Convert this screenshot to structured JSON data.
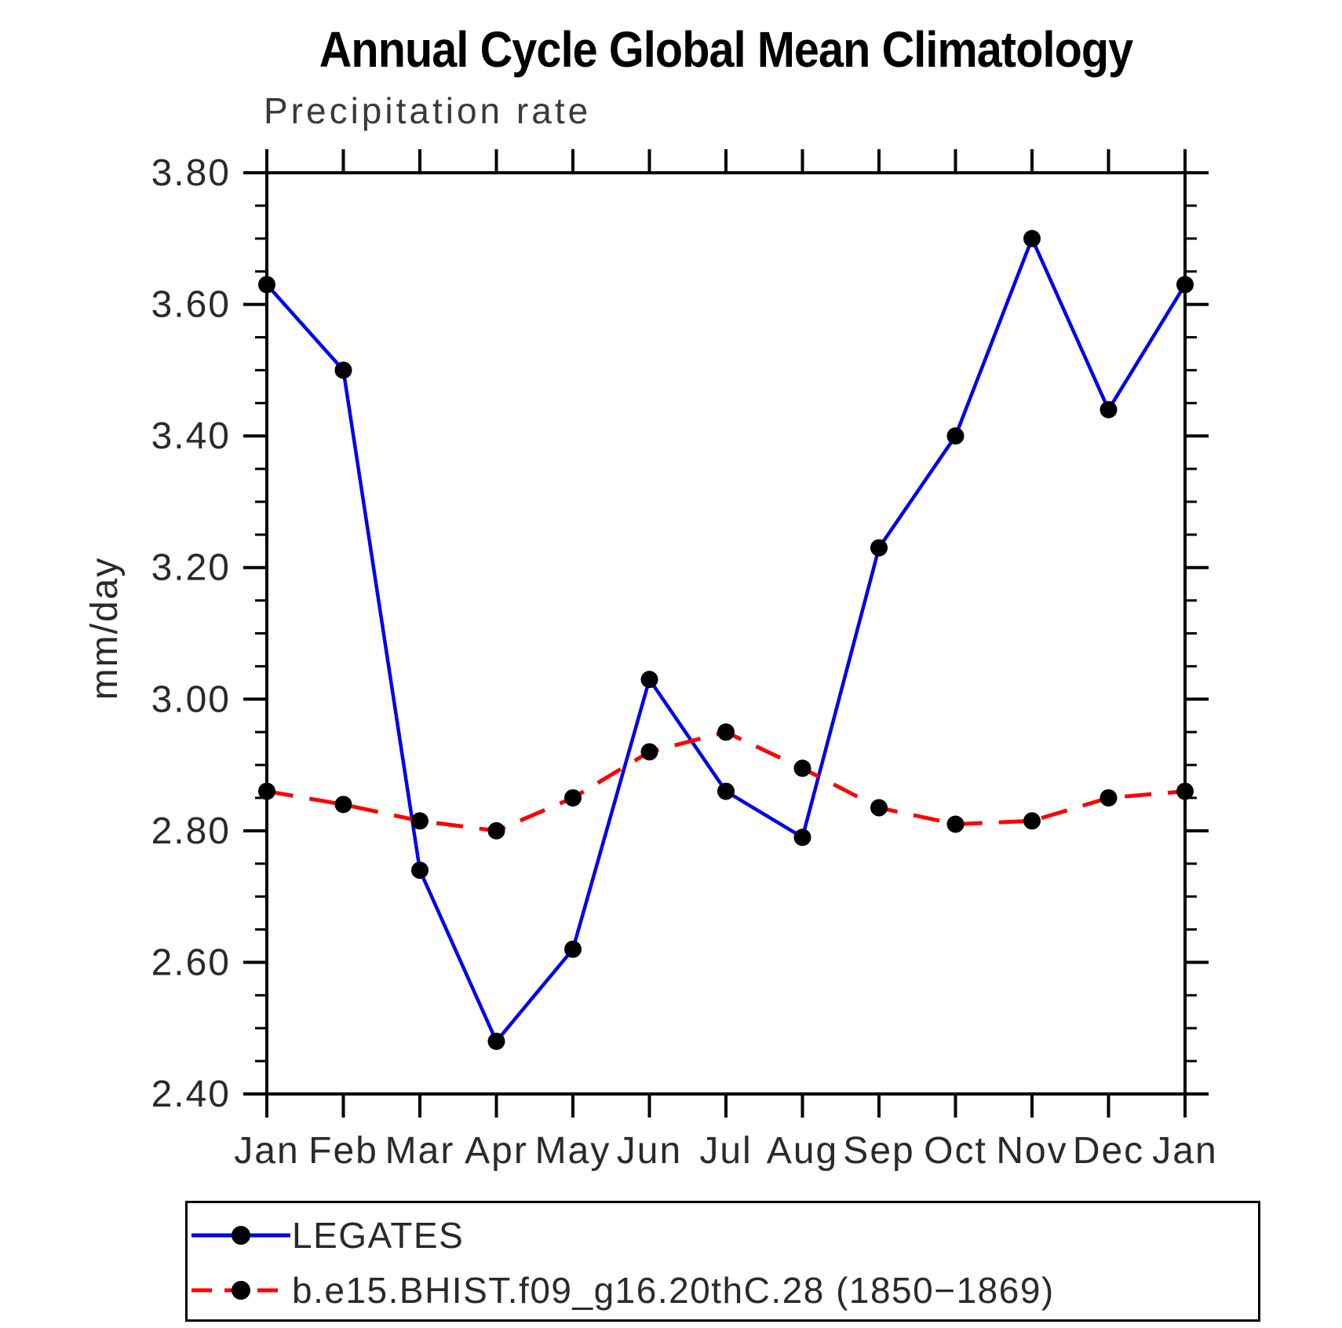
{
  "title": "Annual Cycle Global Mean Climatology",
  "subtitle": "Precipitation rate",
  "y_axis": {
    "label": "mm/day",
    "min": 2.4,
    "max": 3.8,
    "major_step": 0.2,
    "minor_step": 0.05,
    "tick_labels": [
      "2.40",
      "2.60",
      "2.80",
      "3.00",
      "3.20",
      "3.40",
      "3.60",
      "3.80"
    ]
  },
  "x_axis": {
    "tick_labels": [
      "Jan",
      "Feb",
      "Mar",
      "Apr",
      "May",
      "Jun",
      "Jul",
      "Aug",
      "Sep",
      "Oct",
      "Nov",
      "Dec",
      "Jan"
    ]
  },
  "legend": {
    "items": [
      {
        "label": "LEGATES",
        "color": "#0000ee",
        "line_style": "solid",
        "marker": "filled-circle"
      },
      {
        "label": "b.e15.BHIST.f09_g16.20thC.28 (1850−1869)",
        "color": "#ff0000",
        "line_style": "dashed",
        "marker": "filled-circle"
      }
    ]
  },
  "chart_data": {
    "type": "line",
    "title": "Annual Cycle Global Mean Climatology",
    "subtitle": "Precipitation rate",
    "ylabel": "mm/day",
    "ylim": [
      2.4,
      3.8
    ],
    "grid": false,
    "legend_position": "bottom",
    "categories": [
      "Jan",
      "Feb",
      "Mar",
      "Apr",
      "May",
      "Jun",
      "Jul",
      "Aug",
      "Sep",
      "Oct",
      "Nov",
      "Dec",
      "Jan"
    ],
    "series": [
      {
        "name": "LEGATES",
        "color": "#0000ee",
        "line_style": "solid",
        "marker": "filled-circle",
        "values": [
          3.63,
          3.5,
          2.74,
          2.48,
          2.62,
          3.03,
          2.86,
          2.79,
          3.23,
          3.4,
          3.7,
          3.44,
          3.63
        ]
      },
      {
        "name": "b.e15.BHIST.f09_g16.20thC.28 (1850−1869)",
        "color": "#ff0000",
        "line_style": "dashed",
        "marker": "filled-circle",
        "values": [
          2.86,
          2.84,
          2.815,
          2.8,
          2.85,
          2.92,
          2.95,
          2.895,
          2.835,
          2.81,
          2.815,
          2.85,
          2.86
        ]
      }
    ]
  }
}
